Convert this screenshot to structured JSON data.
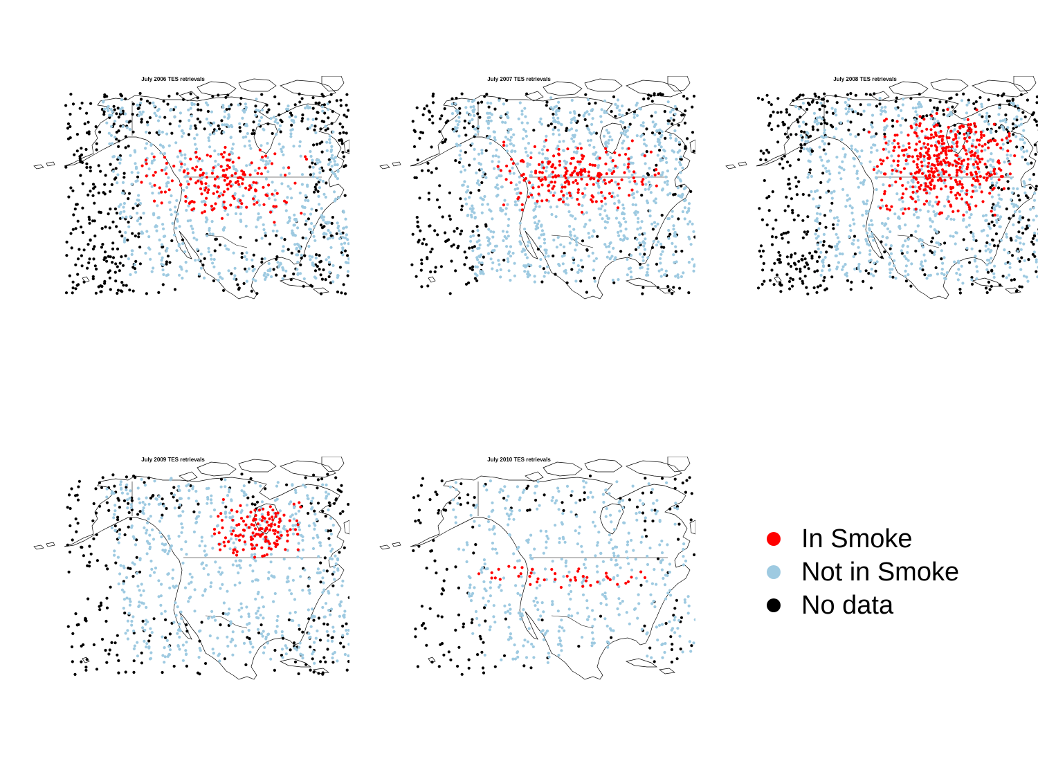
{
  "panels": [
    {
      "title": "July 2006 TES retrievals",
      "counts": {
        "in_smoke": 180,
        "not_in_smoke": 720,
        "no_data": 520
      },
      "seed": 11
    },
    {
      "title": "July 2007 TES retrievals",
      "counts": {
        "in_smoke": 200,
        "not_in_smoke": 900,
        "no_data": 300
      },
      "seed": 23
    },
    {
      "title": "July 2008 TES retrievals",
      "counts": {
        "in_smoke": 420,
        "not_in_smoke": 750,
        "no_data": 500
      },
      "seed": 37
    },
    {
      "title": "July 2009 TES retrievals",
      "counts": {
        "in_smoke": 140,
        "not_in_smoke": 650,
        "no_data": 280
      },
      "seed": 41
    },
    {
      "title": "July 2010 TES retrievals",
      "counts": {
        "in_smoke": 45,
        "not_in_smoke": 460,
        "no_data": 160
      },
      "seed": 53
    }
  ],
  "legend": [
    {
      "label": "In Smoke",
      "color": "#ff0000"
    },
    {
      "label": "Not in Smoke",
      "color": "#9ecae1"
    },
    {
      "label": "No data",
      "color": "#000000"
    }
  ],
  "colors": {
    "in_smoke": "#ff0000",
    "not_in_smoke": "#9ecae1",
    "no_data": "#000000",
    "coastline": "#000000"
  }
}
